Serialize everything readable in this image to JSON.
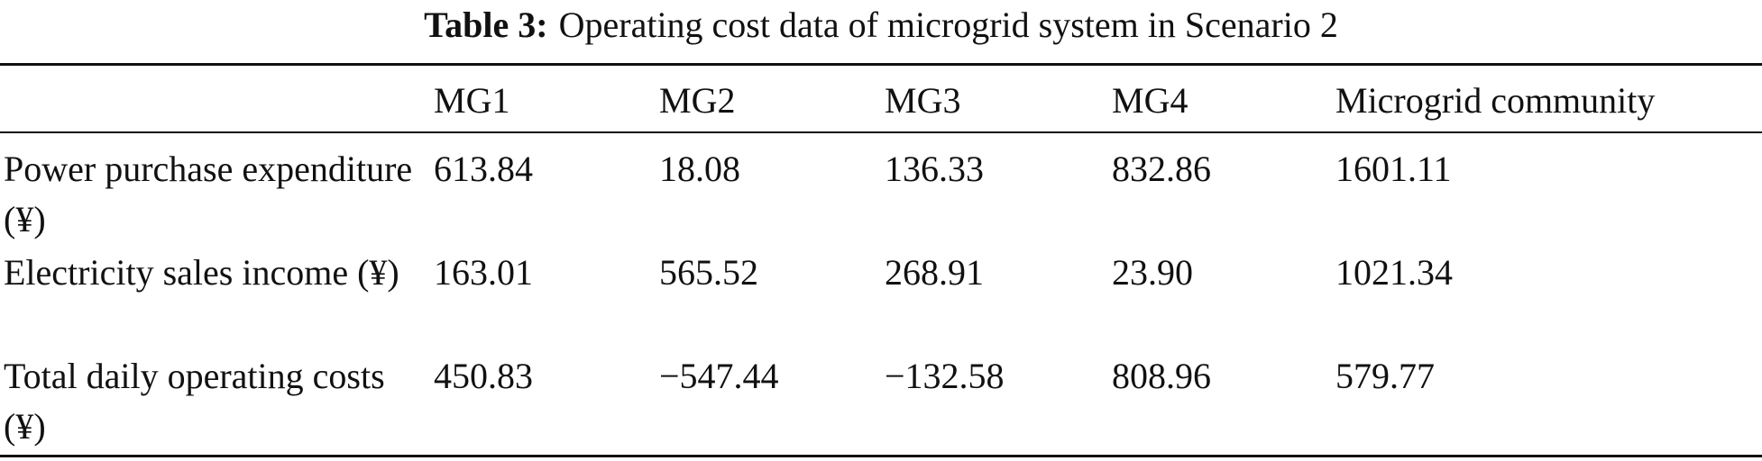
{
  "caption": {
    "label": "Table 3:",
    "text": "Operating cost data of microgrid system in Scenario 2"
  },
  "table": {
    "columns": [
      "MG1",
      "MG2",
      "MG3",
      "MG4",
      "Microgrid community"
    ],
    "rows": [
      {
        "label": "Power purchase expenditure (¥)",
        "values": [
          "613.84",
          "18.08",
          "136.33",
          "832.86",
          "1601.11"
        ]
      },
      {
        "label": "Electricity sales income (¥)",
        "values": [
          "163.01",
          "565.52",
          "268.91",
          "23.90",
          "1021.34"
        ]
      },
      {
        "label": "Total daily operating costs (¥)",
        "values": [
          "450.83",
          "−547.44",
          "−132.58",
          "808.96",
          "579.77"
        ]
      }
    ]
  }
}
